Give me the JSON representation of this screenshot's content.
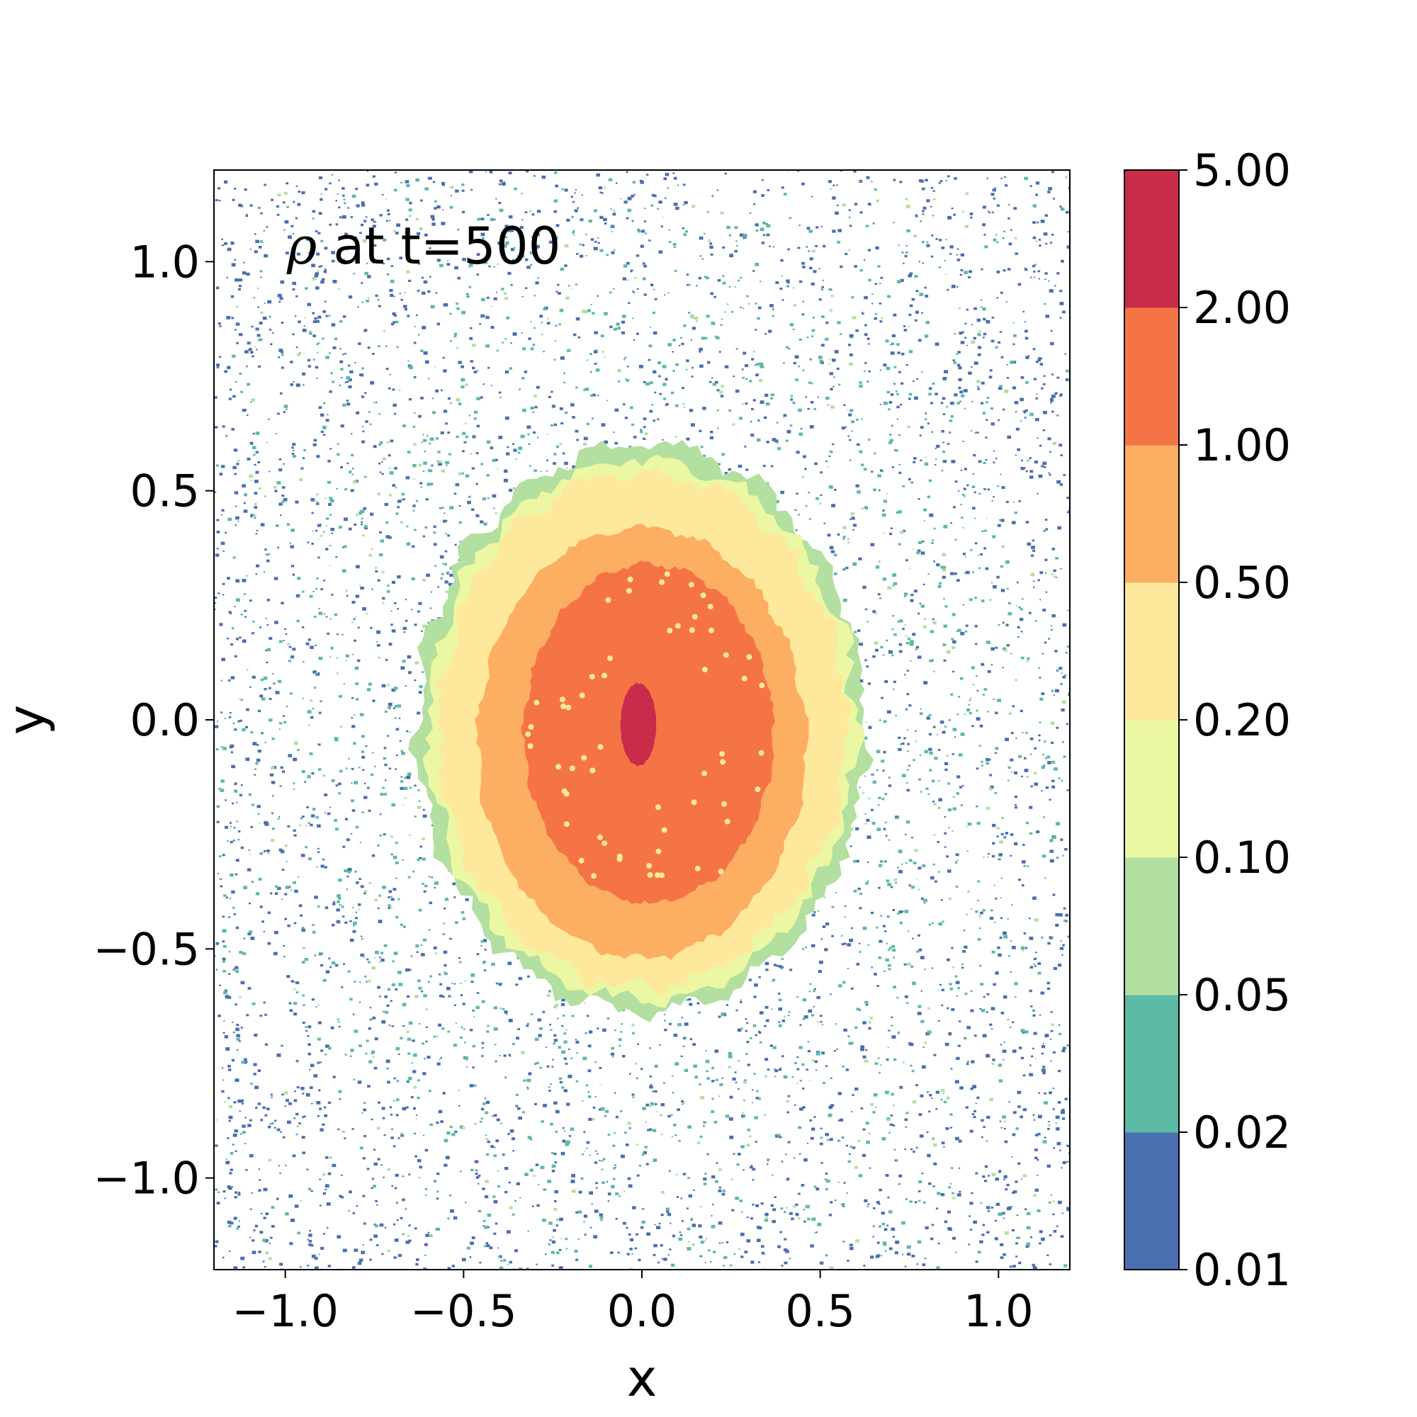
{
  "chart_data": {
    "type": "heatmap",
    "title": "",
    "annotation": {
      "symbol": "ρ",
      "text": " at t=500"
    },
    "xlabel": "x",
    "ylabel": "y",
    "xlim": [
      -1.2,
      1.2
    ],
    "ylim": [
      -1.2,
      1.2
    ],
    "x_ticks": [
      -1.0,
      -0.5,
      0.0,
      0.5,
      1.0
    ],
    "x_tick_labels": [
      "−1.0",
      "−0.5",
      "0.0",
      "0.5",
      "1.0"
    ],
    "y_ticks": [
      -1.0,
      -0.5,
      0.0,
      0.5,
      1.0
    ],
    "y_tick_labels": [
      "−1.0",
      "−0.5",
      "0.0",
      "0.5",
      "1.0"
    ],
    "grid": false,
    "colorbar": {
      "levels": [
        0.01,
        0.02,
        0.05,
        0.1,
        0.2,
        0.5,
        1.0,
        2.0,
        5.0
      ],
      "level_labels": [
        "0.01",
        "0.02",
        "0.05",
        "0.10",
        "0.20",
        "0.50",
        "1.00",
        "2.00",
        "5.00"
      ],
      "colors": [
        "#4a6fb1",
        "#5dbaa4",
        "#b3dfa0",
        "#ebf7a2",
        "#fde89b",
        "#fcae63",
        "#f57446",
        "#c92b4b"
      ],
      "placement": "right"
    },
    "regions": [
      {
        "level_range": [
          2.0,
          5.0
        ],
        "center": [
          -0.01,
          -0.01
        ],
        "radius_x": 0.05,
        "radius_y": 0.09
      },
      {
        "level_range": [
          1.0,
          2.0
        ],
        "center": [
          0.02,
          -0.03
        ],
        "radius_x": 0.35,
        "radius_y": 0.37
      },
      {
        "level_range": [
          0.5,
          1.0
        ],
        "center": [
          0.0,
          -0.05
        ],
        "radius_x": 0.46,
        "radius_y": 0.47
      },
      {
        "level_range": [
          0.2,
          0.5
        ],
        "center": [
          0.0,
          -0.02
        ],
        "radius_x": 0.57,
        "radius_y": 0.56
      },
      {
        "level_range": [
          0.1,
          0.2
        ],
        "center": [
          0.0,
          -0.02
        ],
        "radius_x": 0.6,
        "radius_y": 0.59
      },
      {
        "level_range": [
          0.05,
          0.1
        ],
        "center": [
          0.0,
          -0.02
        ],
        "radius_x": 0.63,
        "radius_y": 0.62
      }
    ]
  }
}
